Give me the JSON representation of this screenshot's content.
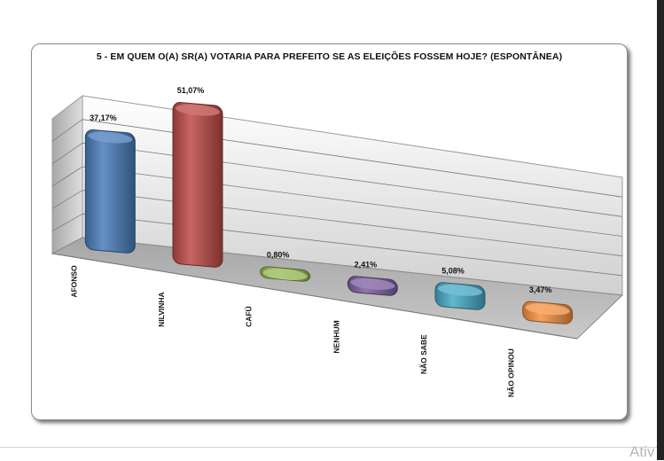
{
  "chart_data": {
    "type": "bar",
    "title": "5 - EM QUEM O(A) SR(A) VOTARIA PARA PREFEITO SE AS ELEIÇÕES FOSSEM HOJE? (ESPONTÂNEA)",
    "categories": [
      "AFONSO",
      "NILVINHA",
      "CAFÚ",
      "NENHUM",
      "NÃO SABE",
      "NÃO OPINOU"
    ],
    "values": [
      37.17,
      51.07,
      0.8,
      2.41,
      5.08,
      3.47
    ],
    "value_labels": [
      "37,17%",
      "51,07%",
      "0,80%",
      "2,41%",
      "5,08%",
      "3,47%"
    ],
    "colors": [
      "#4a7ebb",
      "#be4b48",
      "#98b954",
      "#7d60a0",
      "#46aac5",
      "#f69240"
    ],
    "ylim": [
      0,
      60
    ],
    "grid": true,
    "legend": "none",
    "style": "3d-cylinder"
  },
  "watermark": "Ativ"
}
